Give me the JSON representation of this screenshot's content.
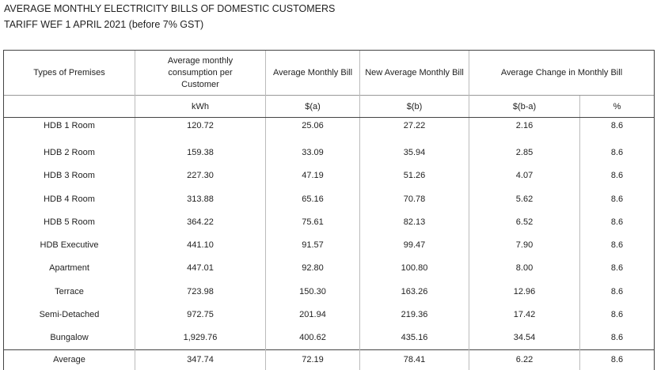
{
  "title": "AVERAGE MONTHLY ELECTRICITY BILLS OF DOMESTIC CUSTOMERS",
  "subtitle": "TARIFF WEF 1 APRIL 2021 (before 7% GST)",
  "headers": {
    "premises": "Types of Premises",
    "consumption": "Average monthly consumption per Customer",
    "avg_bill": "Average Monthly Bill",
    "new_bill": "New Average Monthly Bill",
    "change": "Average Change in Monthly Bill"
  },
  "units": {
    "consumption": "kWh",
    "avg_bill": "$(a)",
    "new_bill": "$(b)",
    "change_abs": "$(b-a)",
    "change_pct": "%"
  },
  "rows": [
    {
      "premises": "HDB 1 Room",
      "kwh": "120.72",
      "a": "25.06",
      "b": "27.22",
      "diff": "2.16",
      "pct": "8.6"
    },
    {
      "premises": "HDB 2 Room",
      "kwh": "159.38",
      "a": "33.09",
      "b": "35.94",
      "diff": "2.85",
      "pct": "8.6"
    },
    {
      "premises": "HDB 3 Room",
      "kwh": "227.30",
      "a": "47.19",
      "b": "51.26",
      "diff": "4.07",
      "pct": "8.6"
    },
    {
      "premises": "HDB 4 Room",
      "kwh": "313.88",
      "a": "65.16",
      "b": "70.78",
      "diff": "5.62",
      "pct": "8.6"
    },
    {
      "premises": "HDB 5 Room",
      "kwh": "364.22",
      "a": "75.61",
      "b": "82.13",
      "diff": "6.52",
      "pct": "8.6"
    },
    {
      "premises": "HDB Executive",
      "kwh": "441.10",
      "a": "91.57",
      "b": "99.47",
      "diff": "7.90",
      "pct": "8.6"
    },
    {
      "premises": "Apartment",
      "kwh": "447.01",
      "a": "92.80",
      "b": "100.80",
      "diff": "8.00",
      "pct": "8.6"
    },
    {
      "premises": "Terrace",
      "kwh": "723.98",
      "a": "150.30",
      "b": "163.26",
      "diff": "12.96",
      "pct": "8.6"
    },
    {
      "premises": "Semi-Detached",
      "kwh": "972.75",
      "a": "201.94",
      "b": "219.36",
      "diff": "17.42",
      "pct": "8.6"
    },
    {
      "premises": "Bungalow",
      "kwh": "1,929.76",
      "a": "400.62",
      "b": "435.16",
      "diff": "34.54",
      "pct": "8.6"
    }
  ],
  "average": {
    "premises": "Average",
    "kwh": "347.74",
    "a": "72.19",
    "b": "78.41",
    "diff": "6.22",
    "pct": "8.6"
  }
}
